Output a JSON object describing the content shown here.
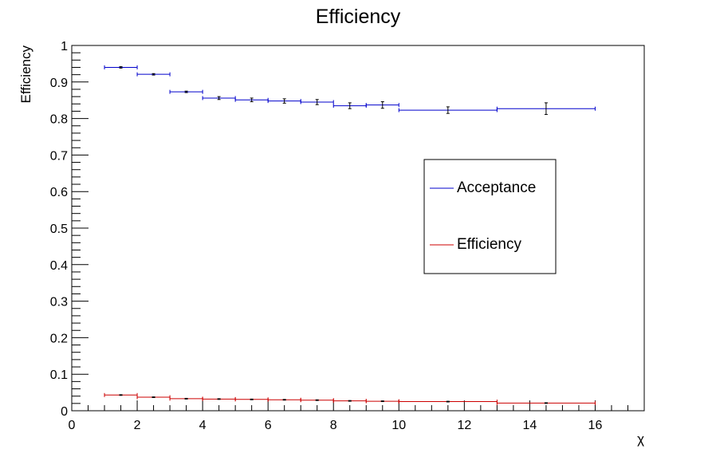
{
  "chart_data": {
    "type": "scatter",
    "title": "Efficiency",
    "xlabel": "χ",
    "ylabel": "Efficiency",
    "xlim": [
      0,
      17.5
    ],
    "ylim": [
      0,
      1
    ],
    "x_ticks": [
      "0",
      "2",
      "4",
      "6",
      "8",
      "10",
      "12",
      "14",
      "16"
    ],
    "y_ticks": [
      "0",
      "0.1",
      "0.2",
      "0.3",
      "0.4",
      "0.5",
      "0.6",
      "0.7",
      "0.8",
      "0.9",
      "1"
    ],
    "grid": false,
    "legend_position": "center-right",
    "series": [
      {
        "name": "Acceptance",
        "color": "#0000cc",
        "points": [
          {
            "xlow": 1,
            "xhigh": 2,
            "y": 0.94,
            "err": 0.002
          },
          {
            "xlow": 2,
            "xhigh": 3,
            "y": 0.921,
            "err": 0.002
          },
          {
            "xlow": 3,
            "xhigh": 4,
            "y": 0.873,
            "err": 0.002
          },
          {
            "xlow": 4,
            "xhigh": 5,
            "y": 0.856,
            "err": 0.004
          },
          {
            "xlow": 5,
            "xhigh": 6,
            "y": 0.851,
            "err": 0.005
          },
          {
            "xlow": 6,
            "xhigh": 7,
            "y": 0.848,
            "err": 0.006
          },
          {
            "xlow": 7,
            "xhigh": 8,
            "y": 0.845,
            "err": 0.007
          },
          {
            "xlow": 8,
            "xhigh": 9,
            "y": 0.835,
            "err": 0.008
          },
          {
            "xlow": 9,
            "xhigh": 10,
            "y": 0.837,
            "err": 0.009
          },
          {
            "xlow": 10,
            "xhigh": 13,
            "y": 0.823,
            "err": 0.009
          },
          {
            "xlow": 13,
            "xhigh": 16,
            "y": 0.827,
            "err": 0.016
          }
        ]
      },
      {
        "name": "Efficiency",
        "color": "#cc0000",
        "points": [
          {
            "xlow": 1,
            "xhigh": 2,
            "y": 0.043,
            "err": 0.001
          },
          {
            "xlow": 2,
            "xhigh": 3,
            "y": 0.037,
            "err": 0.001
          },
          {
            "xlow": 3,
            "xhigh": 4,
            "y": 0.033,
            "err": 0.001
          },
          {
            "xlow": 4,
            "xhigh": 5,
            "y": 0.032,
            "err": 0.001
          },
          {
            "xlow": 5,
            "xhigh": 6,
            "y": 0.031,
            "err": 0.001
          },
          {
            "xlow": 6,
            "xhigh": 7,
            "y": 0.03,
            "err": 0.001
          },
          {
            "xlow": 7,
            "xhigh": 8,
            "y": 0.029,
            "err": 0.001
          },
          {
            "xlow": 8,
            "xhigh": 9,
            "y": 0.027,
            "err": 0.001
          },
          {
            "xlow": 9,
            "xhigh": 10,
            "y": 0.026,
            "err": 0.001
          },
          {
            "xlow": 10,
            "xhigh": 13,
            "y": 0.025,
            "err": 0.001
          },
          {
            "xlow": 13,
            "xhigh": 16,
            "y": 0.021,
            "err": 0.001
          }
        ]
      }
    ]
  }
}
